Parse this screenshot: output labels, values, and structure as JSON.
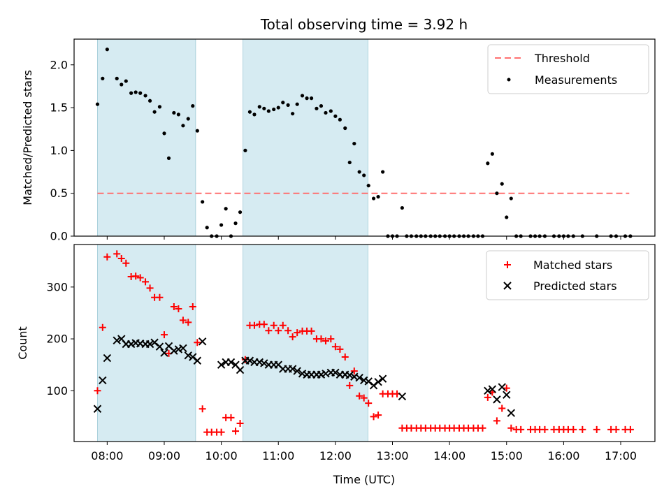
{
  "chart_data": [
    {
      "type": "scatter",
      "title": "Total observing time = 3.92 h",
      "xlabel": "",
      "ylabel": "Matched/Predicted stars",
      "xlim": [
        7.42,
        17.6
      ],
      "ylim": [
        0,
        2.3
      ],
      "yticks": [
        0.0,
        0.5,
        1.0,
        1.5,
        2.0
      ],
      "ytick_labels": [
        "0.0",
        "0.5",
        "1.0",
        "1.5",
        "2.0"
      ],
      "shaded_intervals": [
        [
          7.83,
          9.55
        ],
        [
          10.38,
          12.57
        ]
      ],
      "threshold": {
        "name": "Threshold",
        "y": 0.5,
        "x_range": [
          7.83,
          17.15
        ],
        "color": "#ff7070"
      },
      "legend_position": "top-right",
      "series": [
        {
          "name": "Measurements",
          "color": "#000000",
          "marker": "dot",
          "x": [
            7.83,
            7.92,
            8.0,
            8.17,
            8.25,
            8.33,
            8.42,
            8.5,
            8.58,
            8.67,
            8.75,
            8.83,
            8.92,
            9.0,
            9.08,
            9.17,
            9.25,
            9.33,
            9.42,
            9.5,
            9.58,
            9.67,
            9.75,
            9.83,
            9.92,
            10.0,
            10.08,
            10.17,
            10.25,
            10.33,
            10.42,
            10.5,
            10.58,
            10.67,
            10.75,
            10.83,
            10.92,
            11.0,
            11.08,
            11.17,
            11.25,
            11.33,
            11.42,
            11.5,
            11.58,
            11.67,
            11.75,
            11.83,
            11.92,
            12.0,
            12.08,
            12.17,
            12.25,
            12.33,
            12.42,
            12.5,
            12.58,
            12.67,
            12.75,
            12.83,
            12.92,
            13.0,
            13.08,
            13.17,
            13.25,
            13.33,
            13.42,
            13.5,
            13.58,
            13.67,
            13.75,
            13.83,
            13.92,
            14.0,
            14.08,
            14.17,
            14.25,
            14.33,
            14.42,
            14.5,
            14.58,
            14.67,
            14.75,
            14.83,
            14.92,
            15.0,
            15.08,
            15.17,
            15.25,
            15.42,
            15.5,
            15.58,
            15.67,
            15.83,
            15.92,
            16.0,
            16.08,
            16.17,
            16.33,
            16.58,
            16.83,
            16.92,
            17.08,
            17.17
          ],
          "y": [
            1.54,
            1.84,
            2.18,
            1.84,
            1.77,
            1.81,
            1.67,
            1.68,
            1.67,
            1.64,
            1.58,
            1.45,
            1.51,
            1.2,
            0.91,
            1.44,
            1.42,
            1.29,
            1.37,
            1.52,
            1.23,
            0.4,
            0.1,
            0.0,
            0.0,
            0.13,
            0.32,
            0.0,
            0.15,
            0.28,
            1.0,
            1.45,
            1.42,
            1.51,
            1.49,
            1.46,
            1.48,
            1.5,
            1.56,
            1.53,
            1.43,
            1.54,
            1.64,
            1.61,
            1.61,
            1.49,
            1.52,
            1.44,
            1.46,
            1.4,
            1.36,
            1.26,
            0.86,
            1.08,
            0.75,
            0.71,
            0.59,
            0.44,
            0.46,
            0.75,
            0.0,
            0.0,
            0.0,
            0.33,
            0.0,
            0.0,
            0.0,
            0.0,
            0.0,
            0.0,
            0.0,
            0.0,
            0.0,
            0.0,
            0.0,
            0.0,
            0.0,
            0.0,
            0.0,
            0.0,
            0.0,
            0.85,
            0.96,
            0.5,
            0.61,
            0.22,
            0.44,
            0.0,
            0.0,
            0.0,
            0.0,
            0.0,
            0.0,
            0.0,
            0.0,
            0.0,
            0.0,
            0.0,
            0.0,
            0.0,
            0.0,
            0.0,
            0.0,
            0.0
          ]
        }
      ]
    },
    {
      "type": "scatter",
      "title": "",
      "xlabel": "Time (UTC)",
      "ylabel": "Count",
      "xlim": [
        7.42,
        17.6
      ],
      "ylim": [
        2,
        382
      ],
      "yticks": [
        100,
        200,
        300
      ],
      "ytick_labels": [
        "100",
        "200",
        "300"
      ],
      "xticks": [
        8,
        9,
        10,
        11,
        12,
        13,
        14,
        15,
        16,
        17
      ],
      "xtick_labels": [
        "08:00",
        "09:00",
        "10:00",
        "11:00",
        "12:00",
        "13:00",
        "14:00",
        "15:00",
        "16:00",
        "17:00"
      ],
      "shaded_intervals": [
        [
          7.83,
          9.55
        ],
        [
          10.38,
          12.57
        ]
      ],
      "legend_position": "top-right",
      "series": [
        {
          "name": "Matched stars",
          "color": "#ff0000",
          "marker": "plus",
          "x": [
            7.83,
            7.92,
            8.0,
            8.17,
            8.25,
            8.33,
            8.42,
            8.5,
            8.58,
            8.67,
            8.75,
            8.83,
            8.92,
            9.0,
            9.08,
            9.17,
            9.25,
            9.33,
            9.42,
            9.5,
            9.58,
            9.67,
            9.75,
            9.83,
            9.92,
            10.0,
            10.08,
            10.17,
            10.25,
            10.33,
            10.42,
            10.5,
            10.58,
            10.67,
            10.75,
            10.83,
            10.92,
            11.0,
            11.08,
            11.17,
            11.25,
            11.33,
            11.42,
            11.5,
            11.58,
            11.67,
            11.75,
            11.83,
            11.92,
            12.0,
            12.08,
            12.17,
            12.25,
            12.33,
            12.42,
            12.5,
            12.58,
            12.67,
            12.75,
            12.83,
            12.92,
            13.0,
            13.08,
            13.17,
            13.25,
            13.33,
            13.42,
            13.5,
            13.58,
            13.67,
            13.75,
            13.83,
            13.92,
            14.0,
            14.08,
            14.17,
            14.25,
            14.33,
            14.42,
            14.5,
            14.58,
            14.67,
            14.75,
            14.83,
            14.92,
            15.0,
            15.08,
            15.17,
            15.25,
            15.42,
            15.5,
            15.58,
            15.67,
            15.83,
            15.92,
            16.0,
            16.08,
            16.17,
            16.33,
            16.58,
            16.83,
            16.92,
            17.08,
            17.17
          ],
          "y": [
            100,
            222,
            358,
            364,
            355,
            346,
            320,
            321,
            318,
            310,
            298,
            280,
            280,
            208,
            172,
            262,
            258,
            236,
            232,
            262,
            193,
            65,
            20,
            20,
            20,
            20,
            48,
            48,
            22,
            37,
            160,
            226,
            226,
            228,
            228,
            216,
            226,
            216,
            226,
            216,
            204,
            212,
            215,
            215,
            215,
            200,
            200,
            196,
            200,
            185,
            180,
            165,
            110,
            138,
            90,
            86,
            76,
            50,
            53,
            94,
            94,
            94,
            94,
            28,
            28,
            28,
            28,
            28,
            28,
            28,
            28,
            28,
            28,
            28,
            28,
            28,
            28,
            28,
            28,
            28,
            28,
            87,
            97,
            42,
            66,
            105,
            28,
            25,
            25,
            25,
            25,
            25,
            25,
            25,
            25,
            25,
            25,
            25,
            25,
            25,
            25,
            25,
            25,
            25
          ]
        },
        {
          "name": "Predicted stars",
          "color": "#000000",
          "marker": "x",
          "x": [
            7.83,
            7.92,
            8.0,
            8.17,
            8.25,
            8.33,
            8.42,
            8.5,
            8.58,
            8.67,
            8.75,
            8.83,
            8.92,
            9.0,
            9.08,
            9.17,
            9.25,
            9.33,
            9.42,
            9.5,
            9.58,
            9.67,
            10.0,
            10.08,
            10.17,
            10.25,
            10.33,
            10.42,
            10.5,
            10.58,
            10.67,
            10.75,
            10.83,
            10.92,
            11.0,
            11.08,
            11.17,
            11.25,
            11.33,
            11.42,
            11.5,
            11.58,
            11.67,
            11.75,
            11.83,
            11.92,
            12.0,
            12.08,
            12.17,
            12.25,
            12.33,
            12.42,
            12.5,
            12.58,
            12.67,
            12.75,
            12.83,
            13.17,
            14.67,
            14.75,
            14.83,
            14.92,
            15.0,
            15.08
          ],
          "y": [
            65,
            120,
            163,
            197,
            200,
            190,
            190,
            192,
            191,
            190,
            190,
            193,
            185,
            173,
            186,
            177,
            180,
            182,
            168,
            165,
            158,
            195,
            150,
            155,
            155,
            150,
            140,
            158,
            158,
            155,
            155,
            153,
            150,
            150,
            150,
            142,
            142,
            142,
            138,
            133,
            131,
            131,
            131,
            131,
            133,
            135,
            135,
            131,
            131,
            130,
            127,
            125,
            120,
            118,
            110,
            117,
            123,
            89,
            100,
            103,
            83,
            107,
            92,
            57
          ]
        }
      ]
    }
  ]
}
